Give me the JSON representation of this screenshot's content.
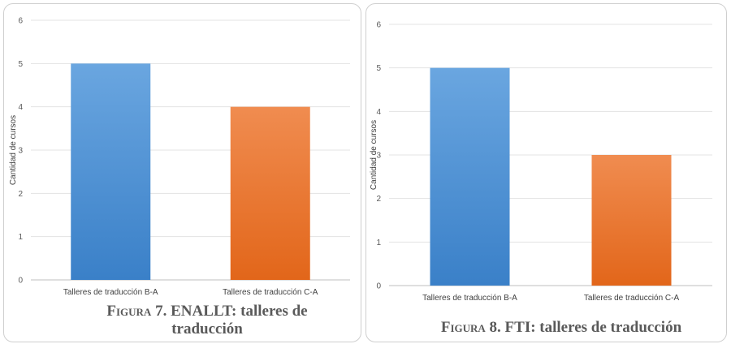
{
  "charts": [
    {
      "caption": {
        "figure_word": "Figura",
        "rest": "7. ENALLT: talleres de traducción"
      },
      "chart_data": {
        "type": "bar",
        "categories": [
          "Talleres de traducción B-A",
          "Talleres de traducción C-A"
        ],
        "values": [
          5,
          4
        ],
        "colors": [
          "#4e95d9",
          "#f07a2a"
        ],
        "ylabel": "Cantidad de cursos",
        "ylim": [
          0,
          6
        ],
        "yticks": [
          0,
          1,
          2,
          3,
          4,
          5,
          6
        ],
        "grid": true
      }
    },
    {
      "caption": {
        "figure_word": "Figura",
        "rest": "8. FTI: talleres de traducción"
      },
      "chart_data": {
        "type": "bar",
        "categories": [
          "Talleres de traducción B-A",
          "Talleres de traducción C-A"
        ],
        "values": [
          5,
          3
        ],
        "colors": [
          "#4e95d9",
          "#f07a2a"
        ],
        "ylabel": "Cantidad de cursos",
        "ylim": [
          0,
          6
        ],
        "yticks": [
          0,
          1,
          2,
          3,
          4,
          5,
          6
        ],
        "grid": true
      }
    }
  ]
}
